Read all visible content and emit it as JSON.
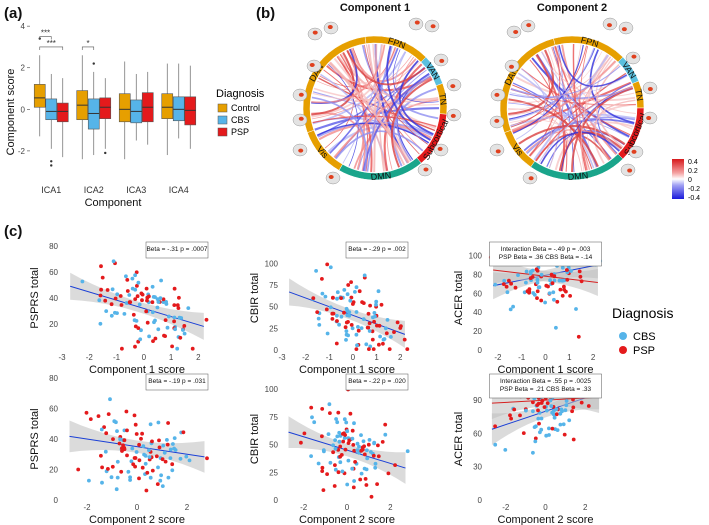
{
  "panel_labels": {
    "a": "(a)",
    "b": "(b)",
    "c": "(c)"
  },
  "colors": {
    "control": "#E69F00",
    "cbs": "#56B4E9",
    "psp": "#E41A1C",
    "fit": "#1a3fd6",
    "fit_red": "#d62020",
    "ribbon": "#bdbdbd"
  },
  "chart_data": [
    {
      "type": "box",
      "id": "a",
      "xlabel": "Component",
      "ylabel": "Component score",
      "categories": [
        "ICA1",
        "ICA2",
        "ICA3",
        "ICA4"
      ],
      "yticks": [
        4,
        2,
        0,
        -2
      ],
      "ylim": [
        -3.4,
        4.2
      ],
      "legend": {
        "title": "Diagnosis",
        "entries": [
          "Control",
          "CBS",
          "PSP"
        ]
      },
      "significance": [
        {
          "label": "***",
          "cat": 0,
          "from": 0,
          "to": 1,
          "y": 3.5
        },
        {
          "label": "***",
          "cat": 0,
          "from": 0,
          "to": 2,
          "y": 3.0
        },
        {
          "label": "*",
          "cat": 1,
          "from": 0,
          "to": 1,
          "y": 3.0
        }
      ],
      "series": [
        {
          "name": "Control",
          "boxes": [
            {
              "min": -1.3,
              "q1": 0.1,
              "med": 0.55,
              "q3": 1.2,
              "max": 2.6,
              "out": [
                3.4
              ]
            },
            {
              "min": -2.4,
              "q1": -0.5,
              "med": 0.2,
              "q3": 0.9,
              "max": 2.6,
              "out": []
            },
            {
              "min": -2.4,
              "q1": -0.6,
              "med": 0.0,
              "q3": 0.75,
              "max": 2.3,
              "out": []
            },
            {
              "min": -2.2,
              "q1": -0.45,
              "med": 0.1,
              "q3": 0.75,
              "max": 2.2,
              "out": []
            }
          ]
        },
        {
          "name": "CBS",
          "boxes": [
            {
              "min": -1.9,
              "q1": -0.5,
              "med": -0.1,
              "q3": 0.5,
              "max": 1.7,
              "out": [
                -2.5,
                -2.7
              ]
            },
            {
              "min": -2.2,
              "q1": -0.95,
              "med": -0.2,
              "q3": 0.5,
              "max": 1.8,
              "out": [
                2.2
              ]
            },
            {
              "min": -1.5,
              "q1": -0.65,
              "med": -0.1,
              "q3": 0.45,
              "max": 1.7,
              "out": []
            },
            {
              "min": -1.4,
              "q1": -0.55,
              "med": 0.0,
              "q3": 0.6,
              "max": 2.2,
              "out": []
            }
          ]
        },
        {
          "name": "PSP",
          "boxes": [
            {
              "min": -2.3,
              "q1": -0.6,
              "med": -0.1,
              "q3": 0.3,
              "max": 1.5,
              "out": []
            },
            {
              "min": -1.9,
              "q1": -0.45,
              "med": 0.1,
              "q3": 0.55,
              "max": 1.5,
              "out": [
                -2.1
              ]
            },
            {
              "min": -1.7,
              "q1": -0.6,
              "med": 0.1,
              "q3": 0.8,
              "max": 1.8,
              "out": []
            },
            {
              "min": -1.9,
              "q1": -0.75,
              "med": -0.05,
              "q3": 0.6,
              "max": 2.1,
              "out": []
            }
          ]
        }
      ]
    },
    {
      "type": "chord",
      "id": "b",
      "components": [
        {
          "title": "Component 1",
          "networks": [
            "FPN",
            "VAN",
            "TN",
            "Subcortical",
            "DMN",
            "Vis",
            "DAN"
          ]
        },
        {
          "title": "Component 2",
          "networks": [
            "FPN",
            "VAN",
            "TN",
            "Subcortical",
            "DMN",
            "Vis",
            "DAN"
          ]
        }
      ],
      "colorbar": {
        "ticks": [
          "0.4",
          "0.2",
          "0",
          "-0.2",
          "-0.4"
        ],
        "range": [
          -0.4,
          0.4
        ]
      }
    },
    {
      "type": "scatter",
      "id": "c",
      "legend": {
        "title": "Diagnosis",
        "entries": [
          "CBS",
          "PSP"
        ]
      },
      "plots": [
        {
          "id": "c11",
          "xlabel": "Component 1 score",
          "ylabel": "PSPRS total",
          "xticks": [
            -3,
            -2,
            -1,
            0,
            1,
            2
          ],
          "yticks": [
            20,
            40,
            60,
            80
          ],
          "xlim": [
            -3,
            2.5
          ],
          "ylim": [
            0,
            80
          ],
          "annotation": [
            "Beta = -.31 p = .0007"
          ],
          "fit": {
            "slope": -6.3,
            "intercept": 32
          }
        },
        {
          "id": "c12",
          "xlabel": "Component 1 score",
          "ylabel": "CBIR total",
          "xticks": [
            -3,
            -2,
            -1,
            0,
            1,
            2
          ],
          "yticks": [
            0,
            25,
            50,
            75,
            100
          ],
          "xlim": [
            -3,
            2.5
          ],
          "ylim": [
            0,
            120
          ],
          "annotation": [
            "Beta = -.29 p = .002"
          ],
          "fit": {
            "slope": -10,
            "intercept": 40
          }
        },
        {
          "id": "c13",
          "xlabel": "Component 1 score",
          "ylabel": "ACER total",
          "xticks": [
            -2,
            -1,
            0,
            1,
            2
          ],
          "yticks": [
            0,
            20,
            40,
            60,
            80,
            100
          ],
          "xlim": [
            -2.5,
            2.5
          ],
          "ylim": [
            0,
            110
          ],
          "annotation": [
            "Interaction Beta = -.49 p = .003",
            "PSP Beta = .36 CBS Beta = -.14"
          ],
          "fit": {
            "slope": 5,
            "intercept": 79
          },
          "fit2": {
            "slope": -3,
            "intercept": 78
          }
        },
        {
          "id": "c21",
          "xlabel": "Component 2 score",
          "ylabel": "PSPRS total",
          "xticks": [
            -2,
            0,
            2
          ],
          "yticks": [
            0,
            20,
            40,
            60,
            80
          ],
          "xlim": [
            -3,
            3
          ],
          "ylim": [
            0,
            80
          ],
          "annotation": [
            "Beta = -.19 p = .031"
          ],
          "fit": {
            "slope": -2.5,
            "intercept": 35
          }
        },
        {
          "id": "c22",
          "xlabel": "Component 2 score",
          "ylabel": "CBIR total",
          "xticks": [
            -2,
            0,
            2
          ],
          "yticks": [
            0,
            25,
            50,
            75,
            100
          ],
          "xlim": [
            -3,
            3
          ],
          "ylim": [
            0,
            110
          ],
          "annotation": [
            "Beta = -.22 p = .020"
          ],
          "fit": {
            "slope": -6,
            "intercept": 45
          }
        },
        {
          "id": "c23",
          "xlabel": "Component 2 score",
          "ylabel": "ACER total",
          "xticks": [
            -2,
            0,
            2
          ],
          "yticks": [
            0,
            30,
            60,
            90
          ],
          "xlim": [
            -3,
            3
          ],
          "ylim": [
            0,
            110
          ],
          "annotation": [
            "Interaction Beta = .55 p = .0025",
            "PSP Beta = .21 CBS Beta = .33"
          ],
          "fit": {
            "slope": 6,
            "intercept": 80
          },
          "fit2": {
            "slope": 1,
            "intercept": 90
          }
        }
      ]
    }
  ]
}
